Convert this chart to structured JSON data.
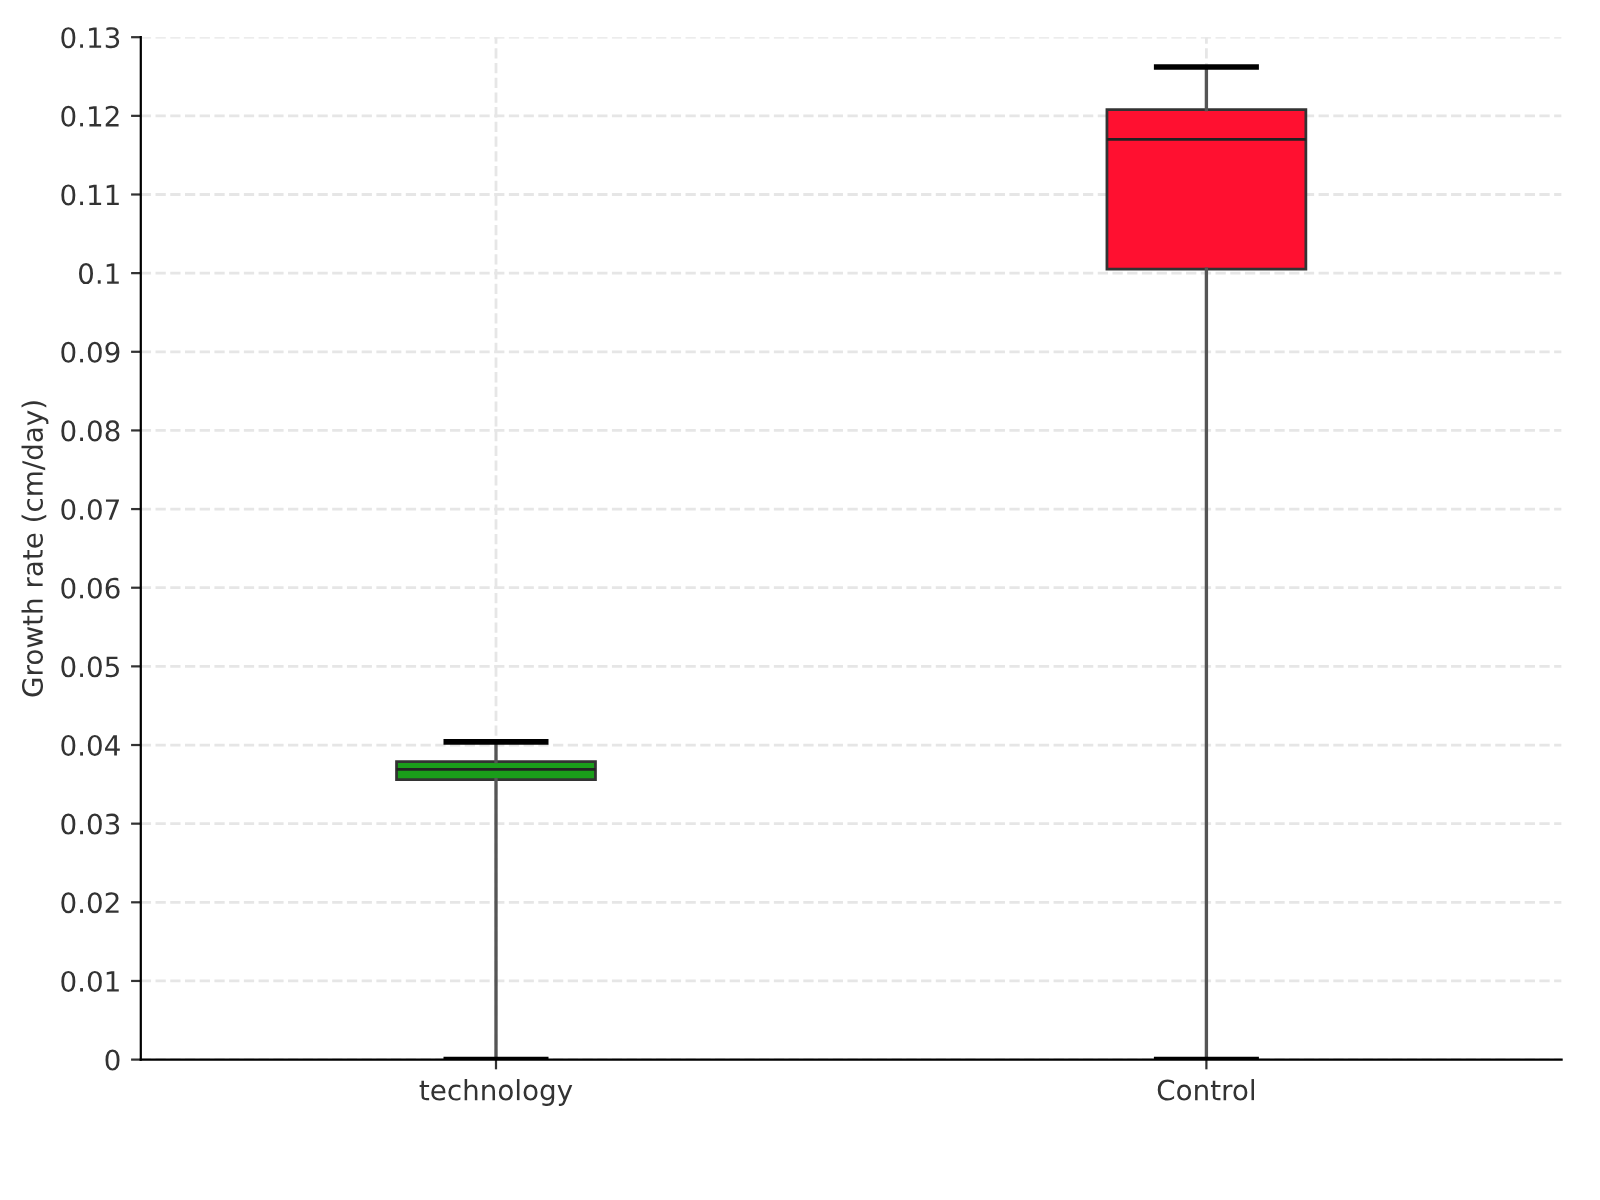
{
  "chart_data": {
    "type": "box",
    "ylabel": "Growth rate (cm/day)",
    "categories": [
      "technology",
      "Control"
    ],
    "boxes": [
      {
        "low": 0,
        "q1": 0.0356,
        "median": 0.0369,
        "q3": 0.0379,
        "high": 0.0404
      },
      {
        "low": 0,
        "q1": 0.1005,
        "median": 0.117,
        "q3": 0.1208,
        "high": 0.1262
      }
    ],
    "colors": [
      "#1a9e1a",
      "#ff1030"
    ],
    "ylim": [
      0,
      0.13
    ],
    "yticks": [
      {
        "value": 0,
        "label": "0"
      },
      {
        "value": 0.01,
        "label": "0.01"
      },
      {
        "value": 0.02,
        "label": "0.02"
      },
      {
        "value": 0.03,
        "label": "0.03"
      },
      {
        "value": 0.04,
        "label": "0.04"
      },
      {
        "value": 0.05,
        "label": "0.05"
      },
      {
        "value": 0.06,
        "label": "0.06"
      },
      {
        "value": 0.07,
        "label": "0.07"
      },
      {
        "value": 0.08,
        "label": "0.08"
      },
      {
        "value": 0.09,
        "label": "0.09"
      },
      {
        "value": 0.1,
        "label": "0.1"
      },
      {
        "value": 0.11,
        "label": "0.11"
      },
      {
        "value": 0.12,
        "label": "0.12"
      },
      {
        "value": 0.13,
        "label": "0.13"
      }
    ],
    "grid": true
  }
}
